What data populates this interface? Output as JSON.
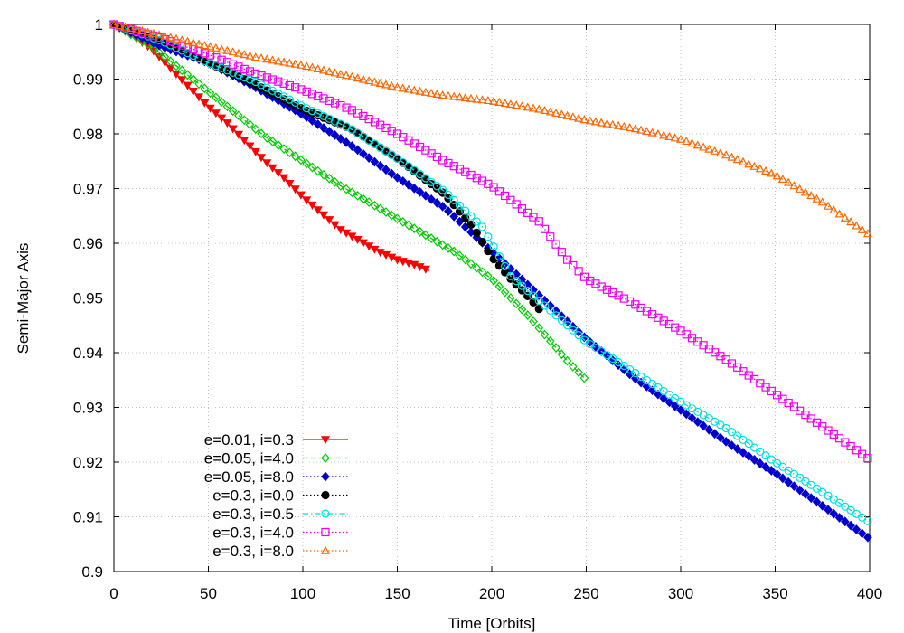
{
  "chart_data": {
    "type": "line",
    "title": "",
    "xlabel": "Time [Orbits]",
    "ylabel": "Semi-Major Axis",
    "xlim": [
      0,
      400
    ],
    "ylim": [
      0.9,
      1.0
    ],
    "xticks": [
      "0",
      "50",
      "100",
      "150",
      "200",
      "250",
      "300",
      "350",
      "400"
    ],
    "yticks": [
      "0.9",
      "0.91",
      "0.92",
      "0.93",
      "0.94",
      "0.95",
      "0.96",
      "0.97",
      "0.98",
      "0.99",
      "1"
    ],
    "grid": true,
    "legend_position": "bottom-left",
    "series": [
      {
        "name": "e=0.01, i=0.3",
        "color": "#ff0000",
        "marker": "triangle-down-filled",
        "line": "solid",
        "points": [
          [
            0,
            1.0
          ],
          [
            10,
            0.998
          ],
          [
            20,
            0.9955
          ],
          [
            30,
            0.992
          ],
          [
            40,
            0.9885
          ],
          [
            50,
            0.985
          ],
          [
            60,
            0.982
          ],
          [
            70,
            0.9785
          ],
          [
            80,
            0.975
          ],
          [
            90,
            0.972
          ],
          [
            100,
            0.9685
          ],
          [
            110,
            0.9655
          ],
          [
            120,
            0.9625
          ],
          [
            130,
            0.9605
          ],
          [
            140,
            0.9585
          ],
          [
            150,
            0.957
          ],
          [
            160,
            0.956
          ],
          [
            167,
            0.955
          ]
        ]
      },
      {
        "name": "e=0.05, i=4.0",
        "color": "#00cc00",
        "marker": "diamond-open",
        "line": "dashed",
        "points": [
          [
            0,
            1.0
          ],
          [
            20,
            0.996
          ],
          [
            40,
            0.9905
          ],
          [
            60,
            0.985
          ],
          [
            80,
            0.9795
          ],
          [
            100,
            0.975
          ],
          [
            120,
            0.9705
          ],
          [
            140,
            0.9665
          ],
          [
            160,
            0.9625
          ],
          [
            180,
            0.9585
          ],
          [
            200,
            0.9535
          ],
          [
            220,
            0.9465
          ],
          [
            240,
            0.9385
          ],
          [
            250,
            0.935
          ]
        ]
      },
      {
        "name": "e=0.05, i=8.0",
        "color": "#0000cc",
        "marker": "diamond-filled",
        "line": "dotted",
        "points": [
          [
            0,
            1.0
          ],
          [
            25,
            0.996
          ],
          [
            50,
            0.993
          ],
          [
            75,
            0.9885
          ],
          [
            100,
            0.9835
          ],
          [
            125,
            0.978
          ],
          [
            150,
            0.972
          ],
          [
            175,
            0.9665
          ],
          [
            200,
            0.9585
          ],
          [
            225,
            0.9505
          ],
          [
            250,
            0.9425
          ],
          [
            275,
            0.9355
          ],
          [
            300,
            0.9295
          ],
          [
            325,
            0.9235
          ],
          [
            350,
            0.918
          ],
          [
            375,
            0.912
          ],
          [
            400,
            0.906
          ]
        ]
      },
      {
        "name": "e=0.3, i=0.0",
        "color": "#000000",
        "marker": "circle-filled",
        "line": "dotted",
        "points": [
          [
            0,
            1.0
          ],
          [
            25,
            0.997
          ],
          [
            50,
            0.993
          ],
          [
            75,
            0.989
          ],
          [
            100,
            0.9845
          ],
          [
            125,
            0.981
          ],
          [
            150,
            0.9755
          ],
          [
            175,
            0.969
          ],
          [
            190,
            0.963
          ],
          [
            200,
            0.9575
          ],
          [
            210,
            0.9535
          ],
          [
            220,
            0.95
          ],
          [
            225,
            0.948
          ]
        ]
      },
      {
        "name": "e=0.3, i=0.5",
        "color": "#00e0e0",
        "marker": "circle-open",
        "line": "dashdot",
        "points": [
          [
            0,
            1.0
          ],
          [
            25,
            0.997
          ],
          [
            50,
            0.993
          ],
          [
            75,
            0.9895
          ],
          [
            100,
            0.985
          ],
          [
            125,
            0.981
          ],
          [
            150,
            0.9755
          ],
          [
            175,
            0.9695
          ],
          [
            195,
            0.963
          ],
          [
            210,
            0.954
          ],
          [
            230,
            0.948
          ],
          [
            250,
            0.942
          ],
          [
            275,
            0.9365
          ],
          [
            300,
            0.931
          ],
          [
            325,
            0.926
          ],
          [
            350,
            0.92
          ],
          [
            375,
            0.9145
          ],
          [
            400,
            0.909
          ]
        ]
      },
      {
        "name": "e=0.3, i=4.0",
        "color": "#ee00ee",
        "marker": "square-open",
        "line": "dotted",
        "points": [
          [
            0,
            1.0
          ],
          [
            25,
            0.9975
          ],
          [
            50,
            0.9945
          ],
          [
            75,
            0.991
          ],
          [
            100,
            0.988
          ],
          [
            125,
            0.9845
          ],
          [
            150,
            0.98
          ],
          [
            175,
            0.975
          ],
          [
            200,
            0.9705
          ],
          [
            225,
            0.964
          ],
          [
            240,
            0.957
          ],
          [
            250,
            0.9535
          ],
          [
            275,
            0.949
          ],
          [
            300,
            0.944
          ],
          [
            325,
            0.9385
          ],
          [
            350,
            0.9325
          ],
          [
            375,
            0.9265
          ],
          [
            400,
            0.9205
          ]
        ]
      },
      {
        "name": "e=0.3, i=8.0",
        "color": "#ff6600",
        "marker": "triangle-up-open",
        "line": "dotted",
        "points": [
          [
            0,
            1.0
          ],
          [
            25,
            0.998
          ],
          [
            50,
            0.996
          ],
          [
            75,
            0.994
          ],
          [
            100,
            0.9925
          ],
          [
            125,
            0.9905
          ],
          [
            150,
            0.9885
          ],
          [
            175,
            0.987
          ],
          [
            200,
            0.986
          ],
          [
            225,
            0.9845
          ],
          [
            250,
            0.9825
          ],
          [
            275,
            0.981
          ],
          [
            300,
            0.979
          ],
          [
            325,
            0.976
          ],
          [
            350,
            0.9725
          ],
          [
            375,
            0.9675
          ],
          [
            400,
            0.9615
          ]
        ]
      }
    ]
  }
}
